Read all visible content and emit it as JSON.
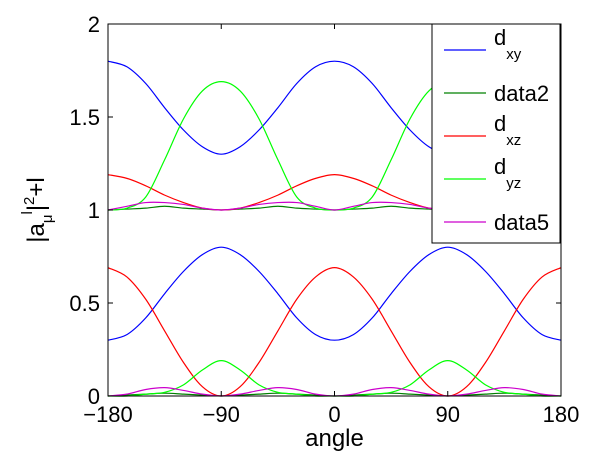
{
  "chart_data": {
    "type": "line",
    "xlabel": "angle",
    "ylabel": "|aμ l|²+l",
    "ylabel_parts": {
      "base": "|a",
      "sub": "μ",
      "sup": "l",
      "rest": "|",
      "sup2": "2",
      "tail": "+l"
    },
    "xlim": [
      -180,
      180
    ],
    "ylim": [
      0,
      2
    ],
    "xticks": [
      -180,
      -90,
      0,
      90,
      180
    ],
    "xtick_labels": [
      "−180",
      "−90",
      "0",
      "90",
      "180"
    ],
    "yticks": [
      0,
      0.5,
      1,
      1.5,
      2
    ],
    "ytick_labels": [
      "0",
      "0.5",
      "1",
      "1.5",
      "2"
    ],
    "grid": false,
    "legend_position": "top-right",
    "x": [
      -180,
      -165,
      -150,
      -135,
      -120,
      -105,
      -90,
      -75,
      -60,
      -45,
      -30,
      -15,
      0,
      15,
      30,
      45,
      60,
      75,
      90,
      105,
      120,
      135,
      150,
      165,
      180
    ],
    "series": [
      {
        "name": "d_xy",
        "legend_main": "d",
        "legend_sub": "xy",
        "color": "#0000ff",
        "values": [
          1.8,
          1.77,
          1.68,
          1.55,
          1.43,
          1.34,
          1.3,
          1.34,
          1.43,
          1.55,
          1.68,
          1.77,
          1.8,
          1.77,
          1.68,
          1.55,
          1.43,
          1.34,
          1.3,
          1.34,
          1.43,
          1.55,
          1.68,
          1.77,
          1.8
        ]
      },
      {
        "name": "data2",
        "legend_main": "data2",
        "legend_sub": "",
        "color": "#008000",
        "values": [
          1.0,
          1.005,
          1.01,
          1.02,
          1.01,
          1.005,
          1.0,
          1.005,
          1.01,
          1.02,
          1.01,
          1.005,
          1.0,
          1.005,
          1.01,
          1.02,
          1.01,
          1.005,
          1.0,
          1.005,
          1.01,
          1.02,
          1.01,
          1.005,
          1.0
        ]
      },
      {
        "name": "d_xz",
        "legend_main": "d",
        "legend_sub": "xz",
        "color": "#ff0000",
        "values": [
          1.19,
          1.17,
          1.13,
          1.08,
          1.04,
          1.01,
          1.0,
          1.01,
          1.04,
          1.08,
          1.13,
          1.17,
          1.19,
          1.17,
          1.13,
          1.08,
          1.04,
          1.01,
          1.0,
          1.01,
          1.04,
          1.08,
          1.13,
          1.17,
          1.19
        ]
      },
      {
        "name": "d_yz",
        "legend_main": "d",
        "legend_sub": "yz",
        "color": "#00ff00",
        "values": [
          1.0,
          1.01,
          1.07,
          1.27,
          1.49,
          1.64,
          1.69,
          1.64,
          1.49,
          1.27,
          1.07,
          1.01,
          1.0,
          1.01,
          1.07,
          1.27,
          1.49,
          1.64,
          1.69,
          1.64,
          1.49,
          1.27,
          1.07,
          1.01,
          1.0
        ]
      },
      {
        "name": "data5",
        "legend_main": "data5",
        "legend_sub": "",
        "color": "#cc00cc",
        "values": [
          1.0,
          1.02,
          1.04,
          1.04,
          1.03,
          1.01,
          1.0,
          1.01,
          1.03,
          1.04,
          1.04,
          1.02,
          1.0,
          1.02,
          1.04,
          1.04,
          1.03,
          1.01,
          1.0,
          1.01,
          1.03,
          1.04,
          1.04,
          1.02,
          1.0
        ]
      },
      {
        "name": "d_xy (lower)",
        "legend_main": "",
        "legend_sub": "",
        "color": "#0000ff",
        "values": [
          0.3,
          0.33,
          0.42,
          0.55,
          0.67,
          0.76,
          0.8,
          0.76,
          0.67,
          0.55,
          0.42,
          0.33,
          0.3,
          0.33,
          0.42,
          0.55,
          0.67,
          0.76,
          0.8,
          0.76,
          0.67,
          0.55,
          0.42,
          0.33,
          0.3
        ]
      },
      {
        "name": "data2 (lower)",
        "legend_main": "",
        "legend_sub": "",
        "color": "#008000",
        "values": [
          0.0,
          0.005,
          0.01,
          0.015,
          0.01,
          0.005,
          0.0,
          0.005,
          0.01,
          0.015,
          0.01,
          0.005,
          0.0,
          0.005,
          0.01,
          0.015,
          0.01,
          0.005,
          0.0,
          0.005,
          0.01,
          0.015,
          0.01,
          0.005,
          0.0
        ]
      },
      {
        "name": "d_xz (lower)",
        "legend_main": "",
        "legend_sub": "",
        "color": "#ff0000",
        "values": [
          0.69,
          0.64,
          0.52,
          0.35,
          0.18,
          0.05,
          0.0,
          0.05,
          0.18,
          0.35,
          0.52,
          0.64,
          0.69,
          0.64,
          0.52,
          0.35,
          0.18,
          0.05,
          0.0,
          0.05,
          0.18,
          0.35,
          0.52,
          0.64,
          0.69
        ]
      },
      {
        "name": "d_yz (lower)",
        "legend_main": "",
        "legend_sub": "",
        "color": "#00ff00",
        "values": [
          0.0,
          0.0,
          0.01,
          0.02,
          0.06,
          0.14,
          0.19,
          0.14,
          0.06,
          0.02,
          0.01,
          0.0,
          0.0,
          0.0,
          0.01,
          0.02,
          0.06,
          0.14,
          0.19,
          0.14,
          0.06,
          0.02,
          0.01,
          0.0,
          0.0
        ]
      },
      {
        "name": "data5 (lower)",
        "legend_main": "",
        "legend_sub": "",
        "color": "#cc00cc",
        "values": [
          0.0,
          0.01,
          0.035,
          0.045,
          0.03,
          0.01,
          0.0,
          0.01,
          0.03,
          0.045,
          0.035,
          0.01,
          0.0,
          0.01,
          0.035,
          0.045,
          0.03,
          0.01,
          0.0,
          0.01,
          0.03,
          0.045,
          0.035,
          0.01,
          0.0
        ]
      }
    ]
  }
}
